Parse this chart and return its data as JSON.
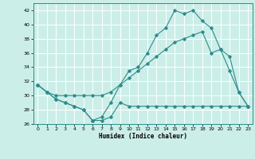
{
  "xlabel": "Humidex (Indice chaleur)",
  "background_color": "#cceee8",
  "grid_color": "#ffffff",
  "line_color": "#2d8b8b",
  "xlim": [
    -0.5,
    23.5
  ],
  "ylim": [
    26,
    43
  ],
  "yticks": [
    26,
    28,
    30,
    32,
    34,
    36,
    38,
    40,
    42
  ],
  "xticks": [
    0,
    1,
    2,
    3,
    4,
    5,
    6,
    7,
    8,
    9,
    10,
    11,
    12,
    13,
    14,
    15,
    16,
    17,
    18,
    19,
    20,
    21,
    22,
    23
  ],
  "curve1_y": [
    31.5,
    30.5,
    29.5,
    29,
    28.5,
    28,
    26.5,
    26.5,
    27,
    29,
    28.5,
    28.5,
    28.5,
    28.5,
    28.5,
    28.5,
    28.5,
    28.5,
    28.5,
    28.5,
    28.5,
    28.5,
    28.5,
    28.5
  ],
  "curve2_y": [
    31.5,
    30.5,
    29.5,
    29,
    28.5,
    28,
    26.5,
    27,
    29,
    31.5,
    33.5,
    34,
    36,
    38.5,
    39.5,
    42,
    41.5,
    42,
    40.5,
    39.5,
    36.5,
    33.5,
    30.5,
    28.5
  ],
  "curve3_y": [
    31.5,
    30.5,
    30,
    30,
    30,
    30,
    30,
    30,
    30.5,
    31.5,
    32.5,
    33.5,
    34.5,
    35.5,
    36.5,
    37.5,
    38,
    38.5,
    39,
    36,
    36.5,
    35.5,
    30.5,
    28.5
  ]
}
